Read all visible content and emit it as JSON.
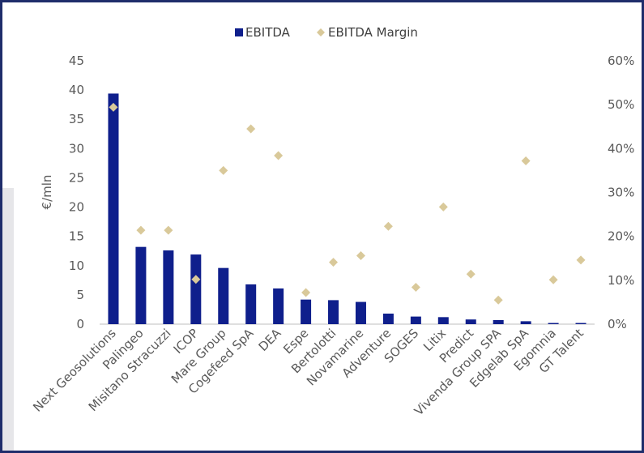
{
  "chart_data": {
    "type": "bar",
    "categories": [
      "Next Geosolutions",
      "Palingeo",
      "Misitano Stracuzzi",
      "ICOP",
      "Mare Group",
      "Cogefeed SpA",
      "DEA",
      "Espe",
      "Bertolotti",
      "Novamarine",
      "Adventure",
      "SOGES",
      "Litix",
      "Predict",
      "Vivenda Group SPA",
      "Edgelab SpA",
      "Egomnia",
      "GT Talent"
    ],
    "series": [
      {
        "name": "EBITDA",
        "type": "bar",
        "axis": "left",
        "color": "#0f1f8c",
        "values": [
          39.4,
          13.2,
          12.6,
          11.9,
          9.6,
          6.8,
          6.1,
          4.2,
          4.1,
          3.8,
          1.8,
          1.3,
          1.2,
          0.8,
          0.7,
          0.5,
          0.2,
          0.2
        ]
      },
      {
        "name": "EBITDA Margin",
        "type": "scatter",
        "axis": "right",
        "color": "#d9c99a",
        "marker": "diamond",
        "values": [
          0.494,
          0.214,
          0.214,
          0.102,
          0.35,
          0.445,
          0.384,
          0.072,
          0.141,
          0.156,
          0.223,
          0.084,
          0.267,
          0.114,
          0.055,
          0.372,
          0.101,
          0.146
        ]
      }
    ],
    "ylabel": "€/mln",
    "ylim": [
      0,
      45
    ],
    "yticks": [
      "0",
      "5",
      "10",
      "15",
      "20",
      "25",
      "30",
      "35",
      "40",
      "45"
    ],
    "y2lim": [
      0,
      0.6
    ],
    "y2ticks": [
      "0%",
      "10%",
      "20%",
      "30%",
      "40%",
      "50%",
      "60%"
    ],
    "legend": {
      "position": "top",
      "items": [
        "EBITDA",
        "EBITDA Margin"
      ]
    },
    "grid": false
  }
}
